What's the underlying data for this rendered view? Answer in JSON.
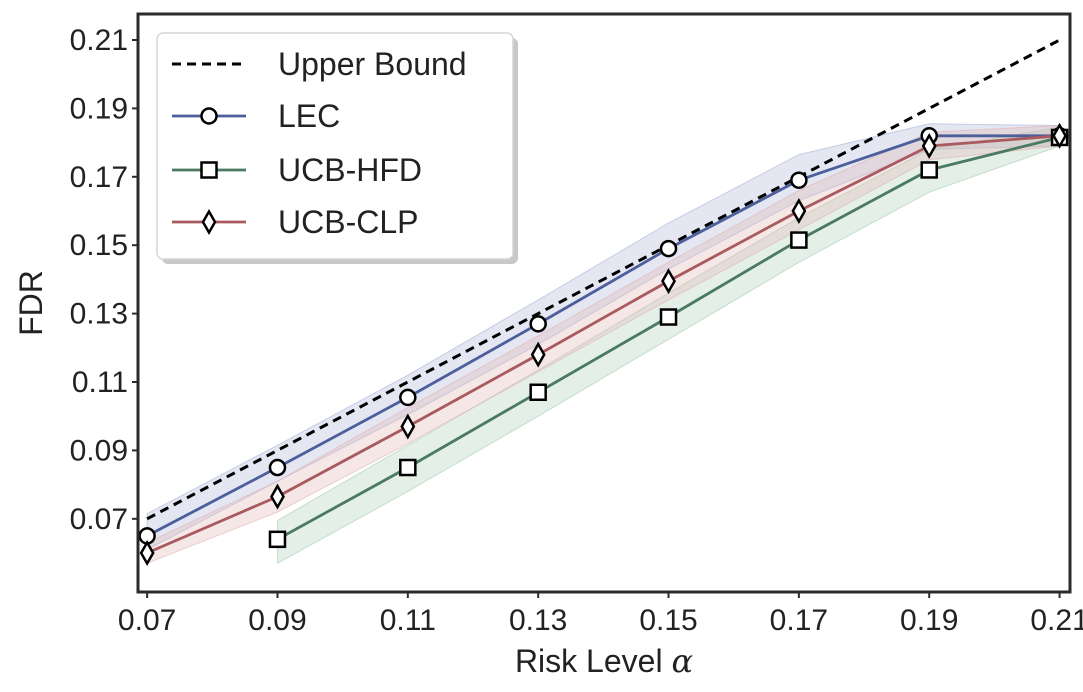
{
  "chart_data": {
    "type": "line",
    "title": "",
    "xlabel": "Risk Level α",
    "ylabel": "FDR",
    "x": [
      0.07,
      0.09,
      0.11,
      0.13,
      0.15,
      0.17,
      0.19,
      0.21
    ],
    "xticks": [
      "0.07",
      "0.09",
      "0.11",
      "0.13",
      "0.15",
      "0.17",
      "0.19",
      "0.21"
    ],
    "yticks": [
      "0.07",
      "0.09",
      "0.11",
      "0.13",
      "0.15",
      "0.17",
      "0.19",
      "0.21"
    ],
    "xlim": [
      0.0686,
      0.2116
    ],
    "ylim": [
      0.0486,
      0.2176
    ],
    "grid": false,
    "legend_position": "top-left",
    "series": [
      {
        "name": "Upper Bound",
        "color": "#000000",
        "style": "dashed",
        "marker": "none",
        "x": [
          0.07,
          0.21
        ],
        "values": [
          0.07,
          0.21
        ]
      },
      {
        "name": "LEC",
        "color": "#4c5f9b",
        "style": "solid",
        "marker": "circle",
        "x": [
          0.07,
          0.09,
          0.11,
          0.13,
          0.15,
          0.17,
          0.19,
          0.21
        ],
        "values": [
          0.065,
          0.085,
          0.1055,
          0.127,
          0.149,
          0.169,
          0.182,
          0.182
        ],
        "band_lower": [
          0.061,
          0.081,
          0.1005,
          0.121,
          0.143,
          0.163,
          0.178,
          0.179
        ],
        "band_upper": [
          0.0715,
          0.0915,
          0.112,
          0.134,
          0.1565,
          0.1765,
          0.1855,
          0.185
        ],
        "band_color": "#aab4d6"
      },
      {
        "name": "UCB-HFD",
        "color": "#4a7a5f",
        "style": "solid",
        "marker": "square",
        "x": [
          0.09,
          0.11,
          0.13,
          0.15,
          0.17,
          0.19,
          0.21
        ],
        "values": [
          0.064,
          0.085,
          0.107,
          0.129,
          0.1515,
          0.172,
          0.1815
        ],
        "band_lower": [
          0.057,
          0.078,
          0.1,
          0.1225,
          0.145,
          0.1655,
          0.179
        ],
        "band_upper": [
          0.0695,
          0.0915,
          0.1135,
          0.136,
          0.158,
          0.178,
          0.1845
        ],
        "band_color": "#a9cdb3"
      },
      {
        "name": "UCB-CLP",
        "color": "#a85a5e",
        "style": "solid",
        "marker": "diamond",
        "x": [
          0.07,
          0.09,
          0.11,
          0.13,
          0.15,
          0.17,
          0.19,
          0.21
        ],
        "values": [
          0.06,
          0.0765,
          0.097,
          0.118,
          0.1395,
          0.16,
          0.179,
          0.182
        ],
        "band_lower": [
          0.057,
          0.072,
          0.092,
          0.113,
          0.134,
          0.1545,
          0.175,
          0.179
        ],
        "band_upper": [
          0.063,
          0.081,
          0.1025,
          0.1235,
          0.145,
          0.166,
          0.183,
          0.185
        ],
        "band_color": "#e2b3b5"
      }
    ]
  }
}
